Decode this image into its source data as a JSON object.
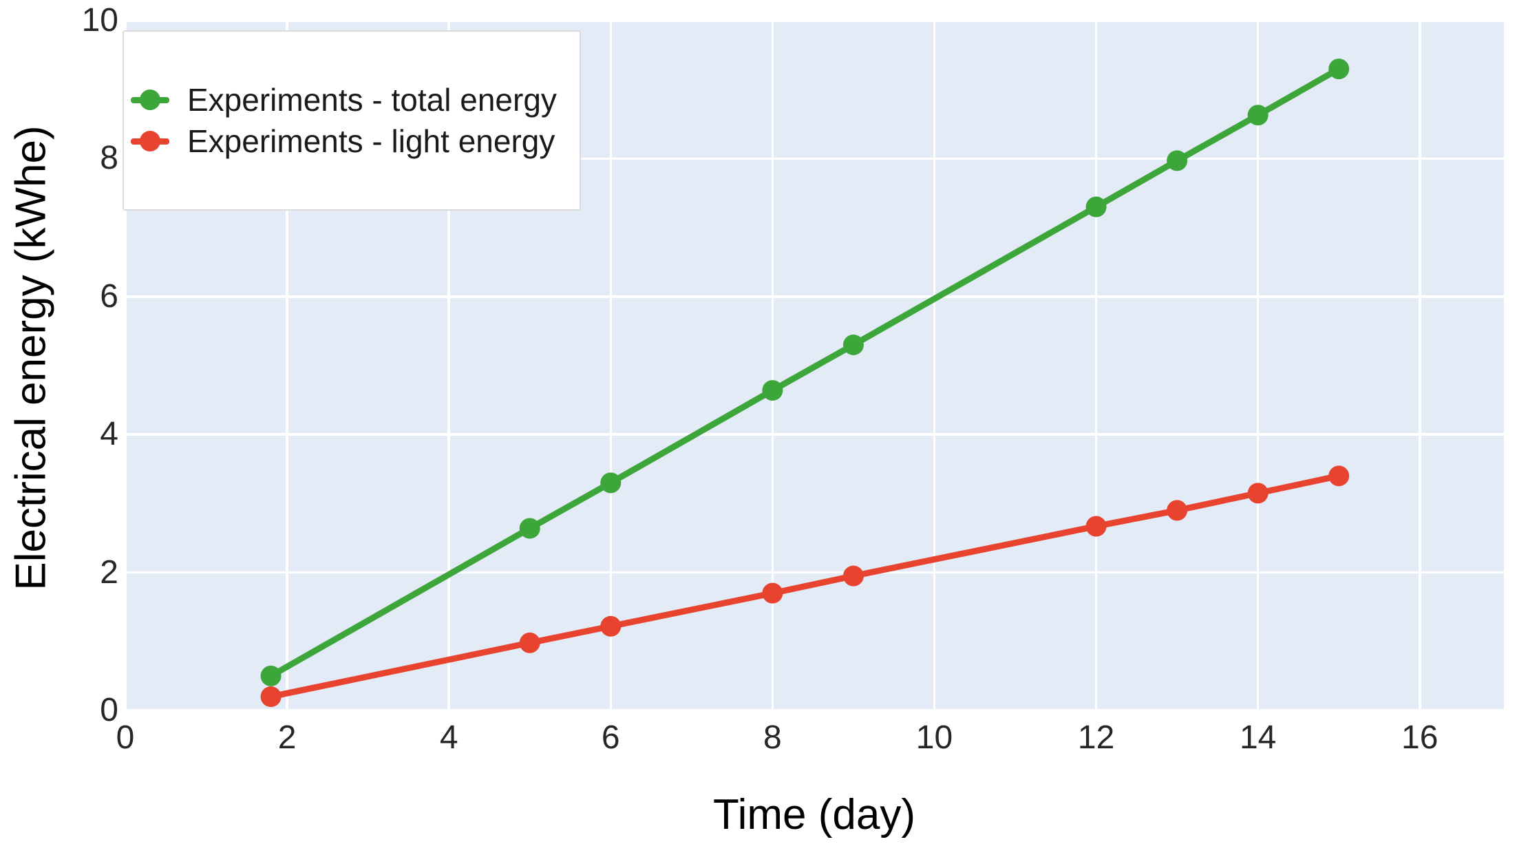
{
  "chart_data": {
    "type": "line",
    "title": "",
    "xlabel": "Time (day)",
    "ylabel": "Electrical energy (kWhe)",
    "x": [
      1.8,
      5,
      6,
      8,
      9,
      12,
      13,
      14,
      15
    ],
    "series": [
      {
        "name": "Experiments - total energy",
        "color": "#3ca63a",
        "marker": "circle",
        "values": [
          0.5,
          2.64,
          3.3,
          4.64,
          5.3,
          7.3,
          7.97,
          8.63,
          9.3
        ]
      },
      {
        "name": "Experiments - light energy",
        "color": "#e7432e",
        "marker": "circle",
        "values": [
          0.2,
          0.98,
          1.22,
          1.7,
          1.95,
          2.67,
          2.9,
          3.15,
          3.4
        ]
      }
    ],
    "xlim": [
      0,
      17.04
    ],
    "ylim": [
      0,
      10
    ],
    "xticks": [
      0,
      2,
      4,
      6,
      8,
      10,
      12,
      14,
      16
    ],
    "yticks": [
      0,
      2,
      4,
      6,
      8,
      10
    ],
    "grid": true,
    "grid_color": "#ffffff",
    "plot_bg": "#e3ecf6",
    "legend_position": "upper-left",
    "line_width": 9,
    "marker_radius": 15
  }
}
